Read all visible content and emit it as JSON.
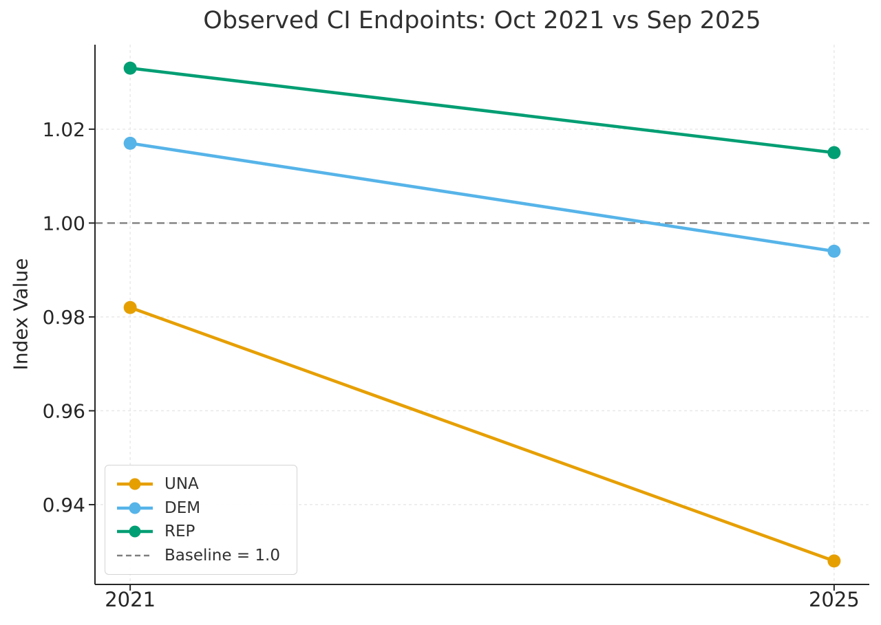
{
  "chart_data": {
    "type": "line",
    "title": "Observed CI Endpoints: Oct 2021 vs Sep 2025",
    "ylabel": "Index Value",
    "xlabel": "",
    "x": [
      2021,
      2025
    ],
    "xtick_labels": [
      "2021",
      "2025"
    ],
    "xlim": [
      2020.8,
      2025.2
    ],
    "yticks": [
      0.94,
      0.96,
      0.98,
      1.0,
      1.02
    ],
    "ytick_labels": [
      "0.94",
      "0.96",
      "0.98",
      "1.00",
      "1.02"
    ],
    "ylim": [
      0.923,
      1.038
    ],
    "grid": true,
    "legend_position": "lower-left",
    "series": [
      {
        "name": "UNA",
        "color": "#E69F00",
        "values": [
          0.982,
          0.928
        ]
      },
      {
        "name": "DEM",
        "color": "#56B4E9",
        "values": [
          1.017,
          0.994
        ]
      },
      {
        "name": "REP",
        "color": "#009E73",
        "values": [
          1.033,
          1.015
        ]
      }
    ],
    "baseline": {
      "label": "Baseline = 1.0",
      "value": 1.0,
      "color": "#7f7f7f"
    },
    "colors": {
      "grid": "#e6e6e6",
      "spine": "#262626",
      "tick_text": "#262626",
      "title_text": "#303030"
    }
  }
}
